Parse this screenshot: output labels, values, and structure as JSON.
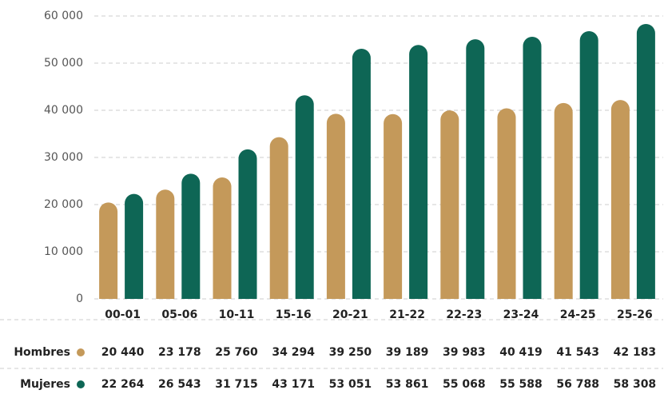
{
  "chart_data": {
    "type": "bar",
    "categories": [
      "00-01",
      "05-06",
      "10-11",
      "15-16",
      "20-21",
      "21-22",
      "22-23",
      "23-24",
      "24-25",
      "25-26"
    ],
    "series": [
      {
        "name": "Hombres",
        "color": "#c4995a",
        "values": [
          20440,
          23178,
          25760,
          34294,
          39250,
          39189,
          39983,
          40419,
          41543,
          42183
        ],
        "value_labels": [
          "20 440",
          "23 178",
          "25 760",
          "34 294",
          "39 250",
          "39 189",
          "39 983",
          "40 419",
          "41 543",
          "42 183"
        ]
      },
      {
        "name": "Mujeres",
        "color": "#0e6655",
        "values": [
          22264,
          26543,
          31715,
          43171,
          53051,
          53861,
          55068,
          55588,
          56788,
          58308
        ],
        "value_labels": [
          "22 264",
          "26 543",
          "31 715",
          "43 171",
          "53 051",
          "53 861",
          "55 068",
          "55 588",
          "56 788",
          "58 308"
        ]
      }
    ],
    "ylim": [
      0,
      60000
    ],
    "yticks": [
      0,
      {
        "value": 10000,
        "label": "10 000"
      },
      {
        "value": 20000,
        "label": "20 000"
      },
      {
        "value": 30000,
        "label": "30 000"
      },
      {
        "value": 40000,
        "label": "40 000"
      },
      {
        "value": 50000,
        "label": "50 000"
      },
      {
        "value": 60000,
        "label": "60 000"
      }
    ],
    "grid": true
  }
}
